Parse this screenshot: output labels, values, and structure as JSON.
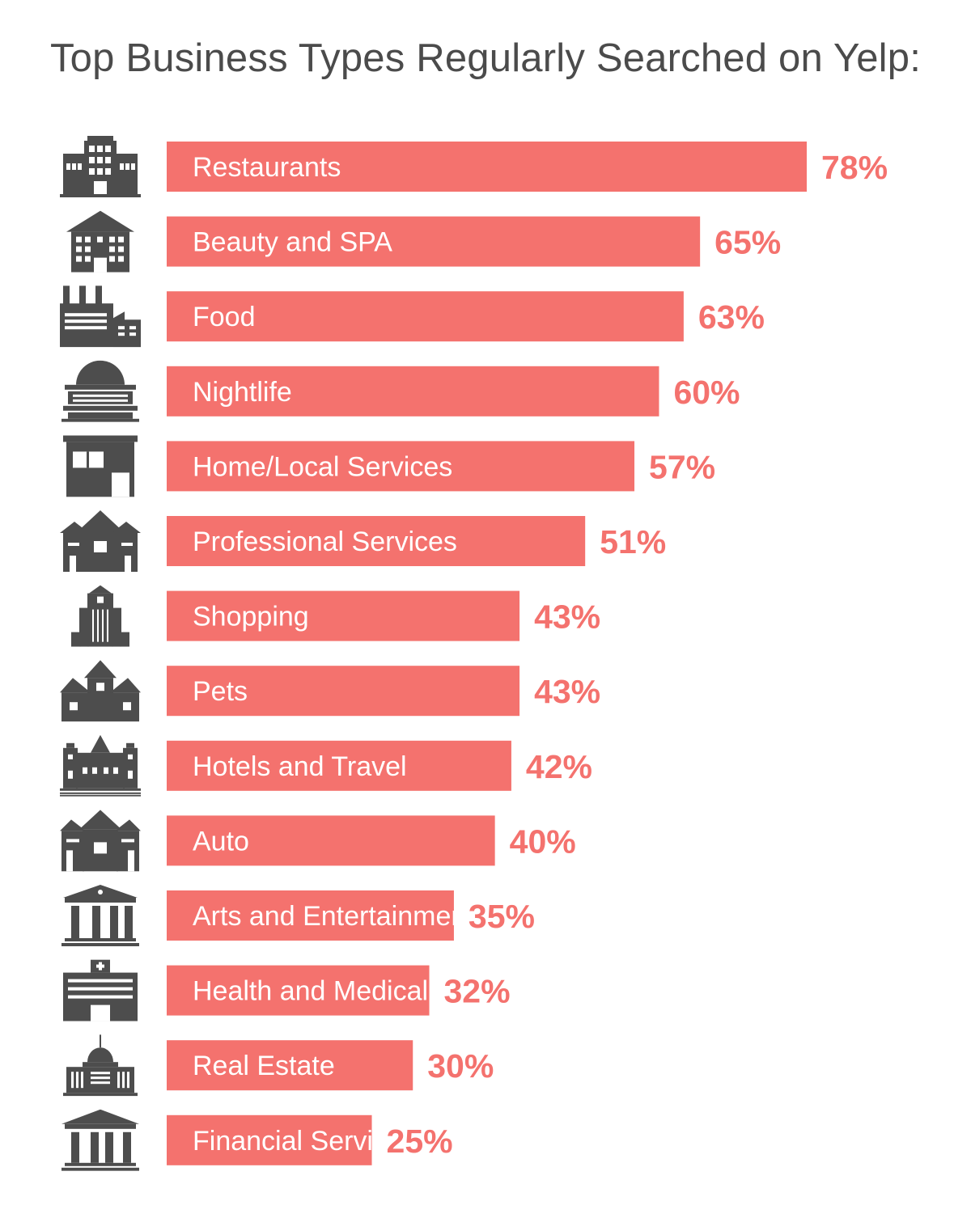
{
  "title": "Top Business Types Regularly Searched on Yelp:",
  "colors": {
    "bar": "#f4726e",
    "value_text": "#f4726e",
    "icon": "#4d4d4d",
    "title": "#4b4b4b"
  },
  "chart_data": {
    "type": "bar",
    "orientation": "horizontal",
    "title": "Top Business Types Regularly Searched on Yelp:",
    "unit": "%",
    "xlim": [
      0,
      100
    ],
    "grid": false,
    "categories": [
      "Restaurants",
      "Beauty and SPA",
      "Food",
      "Nightlife",
      "Home/Local Services",
      "Professional Services",
      "Shopping",
      "Pets",
      "Hotels and Travel",
      "Auto",
      "Arts and Entertainment",
      "Health and Medical",
      "Real Estate",
      "Financial Services"
    ],
    "values": [
      78,
      65,
      63,
      60,
      57,
      51,
      43,
      43,
      42,
      40,
      35,
      32,
      30,
      25
    ],
    "value_labels": [
      "78%",
      "65%",
      "63%",
      "60%",
      "57%",
      "51%",
      "43%",
      "43%",
      "42%",
      "40%",
      "35%",
      "32%",
      "30%",
      "25%"
    ],
    "icons": [
      "office-complex-icon",
      "townhouse-icon",
      "factory-icon",
      "domed-hall-icon",
      "shop-icon",
      "houses-icon",
      "tower-building-icon",
      "house-cluster-icon",
      "castle-hotel-icon",
      "garage-houses-icon",
      "museum-icon",
      "hospital-icon",
      "capitol-icon",
      "bank-icon"
    ]
  }
}
